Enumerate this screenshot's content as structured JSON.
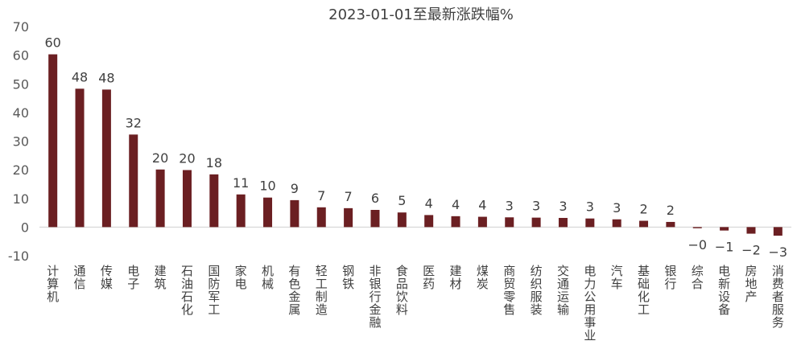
{
  "chart_data": {
    "type": "bar",
    "title": "2023-01-01至最新涨跌幅%",
    "ylim": [
      -10,
      70
    ],
    "yticks": [
      -10,
      0,
      10,
      20,
      30,
      40,
      50,
      60,
      70
    ],
    "grid": false,
    "bar_color": "#6b1f22",
    "categories": [
      "计算机",
      "通信",
      "传媒",
      "电子",
      "建筑",
      "石油石化",
      "国防军工",
      "家电",
      "机械",
      "有色金属",
      "轻工制造",
      "钢铁",
      "非银行金融",
      "食品饮料",
      "医药",
      "建材",
      "煤炭",
      "商贸零售",
      "纺织服装",
      "交通运输",
      "电力公用事业",
      "汽车",
      "基础化工",
      "银行",
      "综合",
      "电新设备",
      "房地产",
      "消费者服务"
    ],
    "values": [
      60.3,
      48.3,
      48.0,
      32.3,
      20.1,
      19.9,
      18.4,
      11.4,
      10.3,
      9.4,
      6.9,
      6.6,
      6.0,
      5.1,
      4.2,
      3.8,
      3.6,
      3.4,
      3.3,
      3.2,
      3.0,
      2.7,
      2.2,
      1.8,
      -0.4,
      -1.2,
      -2.3,
      -3.0
    ],
    "data_labels": [
      "60",
      "48",
      "48",
      "32",
      "20",
      "20",
      "18",
      "11",
      "10",
      "9",
      "7",
      "7",
      "6",
      "5",
      "4",
      "4",
      "4",
      "3",
      "3",
      "3",
      "3",
      "3",
      "2",
      "2",
      "−0",
      "−1",
      "−2",
      "−3"
    ]
  }
}
